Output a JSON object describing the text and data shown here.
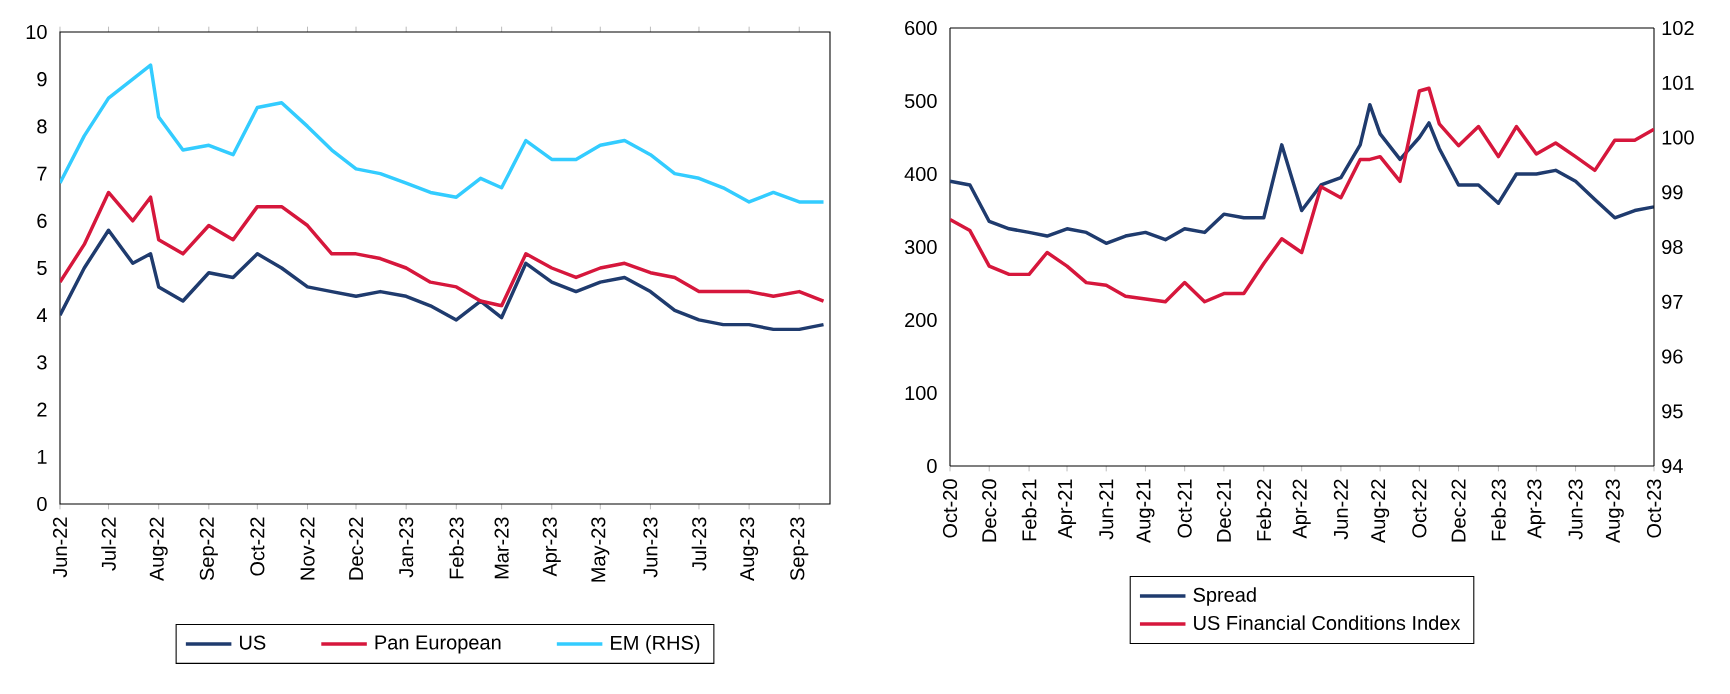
{
  "chart_data": [
    {
      "type": "line",
      "x": [
        "2022-06-01",
        "2022-06-16",
        "2022-07-01",
        "2022-07-16",
        "2022-07-27",
        "2022-08-01",
        "2022-08-16",
        "2022-09-01",
        "2022-09-16",
        "2022-10-01",
        "2022-10-16",
        "2022-11-01",
        "2022-11-16",
        "2022-12-01",
        "2022-12-16",
        "2023-01-01",
        "2023-01-16",
        "2023-02-01",
        "2023-02-16",
        "2023-03-01",
        "2023-03-16",
        "2023-04-01",
        "2023-04-16",
        "2023-05-01",
        "2023-05-16",
        "2023-06-01",
        "2023-06-16",
        "2023-07-01",
        "2023-07-16",
        "2023-08-01",
        "2023-08-16",
        "2023-09-01",
        "2023-09-16"
      ],
      "xlim": [
        "2022-06-01",
        "2023-09-20"
      ],
      "xticks": [
        {
          "value": "2022-06-01",
          "label": "Jun-22"
        },
        {
          "value": "2022-07-01",
          "label": "Jul-22"
        },
        {
          "value": "2022-08-01",
          "label": "Aug-22"
        },
        {
          "value": "2022-09-01",
          "label": "Sep-22"
        },
        {
          "value": "2022-10-01",
          "label": "Oct-22"
        },
        {
          "value": "2022-11-01",
          "label": "Nov-22"
        },
        {
          "value": "2022-12-01",
          "label": "Dec-22"
        },
        {
          "value": "2023-01-01",
          "label": "Jan-23"
        },
        {
          "value": "2023-02-01",
          "label": "Feb-23"
        },
        {
          "value": "2023-03-01",
          "label": "Mar-23"
        },
        {
          "value": "2023-04-01",
          "label": "Apr-23"
        },
        {
          "value": "2023-05-01",
          "label": "May-23"
        },
        {
          "value": "2023-06-01",
          "label": "Jun-23"
        },
        {
          "value": "2023-07-01",
          "label": "Jul-23"
        },
        {
          "value": "2023-08-01",
          "label": "Aug-23"
        },
        {
          "value": "2023-09-01",
          "label": "Sep-23"
        }
      ],
      "ylim": [
        0,
        10
      ],
      "yticks": [
        0,
        1,
        2,
        3,
        4,
        5,
        6,
        7,
        8,
        9,
        10
      ],
      "legend": "bottom",
      "series": [
        {
          "name": "US",
          "color": "#1f3b6e",
          "values": [
            4.0,
            5.0,
            5.8,
            5.1,
            5.3,
            4.6,
            4.3,
            4.9,
            4.8,
            5.3,
            5.0,
            4.6,
            4.5,
            4.4,
            4.5,
            4.4,
            4.2,
            3.9,
            4.3,
            3.95,
            5.1,
            4.7,
            4.5,
            4.7,
            4.8,
            4.5,
            4.1,
            3.9,
            3.8,
            3.8,
            3.7,
            3.7,
            3.8
          ]
        },
        {
          "name": "Pan European",
          "color": "#d6173c",
          "values": [
            4.7,
            5.5,
            6.6,
            6.0,
            6.5,
            5.6,
            5.3,
            5.9,
            5.6,
            6.3,
            6.3,
            5.9,
            5.3,
            5.3,
            5.2,
            5.0,
            4.7,
            4.6,
            4.3,
            4.2,
            5.3,
            5.0,
            4.8,
            5.0,
            5.1,
            4.9,
            4.8,
            4.5,
            4.5,
            4.5,
            4.4,
            4.5,
            4.3
          ]
        },
        {
          "name": "EM (RHS)",
          "color": "#33ccff",
          "values": [
            6.8,
            7.8,
            8.6,
            9.0,
            9.3,
            8.2,
            7.5,
            7.6,
            7.4,
            8.4,
            8.5,
            8.0,
            7.5,
            7.1,
            7.0,
            6.8,
            6.6,
            6.5,
            6.9,
            6.7,
            7.7,
            7.3,
            7.3,
            7.6,
            7.7,
            7.4,
            7.0,
            6.9,
            6.7,
            6.4,
            6.6,
            6.4,
            6.4
          ]
        }
      ]
    },
    {
      "type": "line",
      "x": [
        "2020-10-01",
        "2020-11-01",
        "2020-12-01",
        "2021-01-01",
        "2021-02-01",
        "2021-03-01",
        "2021-04-01",
        "2021-05-01",
        "2021-06-01",
        "2021-07-01",
        "2021-08-01",
        "2021-09-01",
        "2021-10-01",
        "2021-11-01",
        "2021-12-01",
        "2022-01-01",
        "2022-02-01",
        "2022-03-01",
        "2022-04-01",
        "2022-05-01",
        "2022-06-01",
        "2022-07-01",
        "2022-07-16",
        "2022-08-01",
        "2022-09-01",
        "2022-10-01",
        "2022-10-16",
        "2022-11-01",
        "2022-12-01",
        "2023-01-01",
        "2023-02-01",
        "2023-03-01",
        "2023-04-01",
        "2023-05-01",
        "2023-06-01",
        "2023-07-01",
        "2023-08-01",
        "2023-09-01",
        "2023-10-01"
      ],
      "xlim": [
        "2020-10-01",
        "2023-10-01"
      ],
      "xticks": [
        {
          "value": "2020-10-01",
          "label": "Oct-20"
        },
        {
          "value": "2020-12-01",
          "label": "Dec-20"
        },
        {
          "value": "2021-02-01",
          "label": "Feb-21"
        },
        {
          "value": "2021-04-01",
          "label": "Apr-21"
        },
        {
          "value": "2021-06-01",
          "label": "Jun-21"
        },
        {
          "value": "2021-08-01",
          "label": "Aug-21"
        },
        {
          "value": "2021-10-01",
          "label": "Oct-21"
        },
        {
          "value": "2021-12-01",
          "label": "Dec-21"
        },
        {
          "value": "2022-02-01",
          "label": "Feb-22"
        },
        {
          "value": "2022-04-01",
          "label": "Apr-22"
        },
        {
          "value": "2022-06-01",
          "label": "Jun-22"
        },
        {
          "value": "2022-08-01",
          "label": "Aug-22"
        },
        {
          "value": "2022-10-01",
          "label": "Oct-22"
        },
        {
          "value": "2022-12-01",
          "label": "Dec-22"
        },
        {
          "value": "2023-02-01",
          "label": "Feb-23"
        },
        {
          "value": "2023-04-01",
          "label": "Apr-23"
        },
        {
          "value": "2023-06-01",
          "label": "Jun-23"
        },
        {
          "value": "2023-08-01",
          "label": "Aug-23"
        },
        {
          "value": "2023-10-01",
          "label": "Oct-23"
        }
      ],
      "ylim": [
        0,
        600
      ],
      "yticks": [
        0,
        100,
        200,
        300,
        400,
        500,
        600
      ],
      "y2lim": [
        94,
        102
      ],
      "y2ticks": [
        94,
        95,
        96,
        97,
        98,
        99,
        100,
        101,
        102
      ],
      "legend": "bottom",
      "series": [
        {
          "name": "Spread",
          "color": "#1f3b6e",
          "values": [
            390,
            385,
            335,
            325,
            320,
            315,
            325,
            320,
            305,
            315,
            320,
            310,
            325,
            320,
            345,
            340,
            340,
            440,
            350,
            385,
            395,
            440,
            495,
            455,
            420,
            450,
            470,
            435,
            385,
            385,
            360,
            400,
            400,
            405,
            390,
            365,
            340,
            350,
            355
          ]
        },
        {
          "name": "US Financial Conditions Index",
          "color": "#d6173c",
          "axis": "y2",
          "values": [
            98.5,
            98.3,
            97.65,
            97.5,
            97.5,
            97.9,
            97.65,
            97.35,
            97.3,
            97.1,
            97.05,
            97.0,
            97.35,
            97.0,
            97.15,
            97.15,
            97.7,
            98.15,
            97.9,
            99.1,
            98.9,
            99.6,
            99.6,
            99.65,
            99.2,
            100.85,
            100.9,
            100.25,
            99.85,
            100.2,
            99.65,
            100.2,
            99.7,
            99.9,
            99.65,
            99.4,
            99.95,
            99.95,
            100.15
          ]
        }
      ]
    }
  ]
}
